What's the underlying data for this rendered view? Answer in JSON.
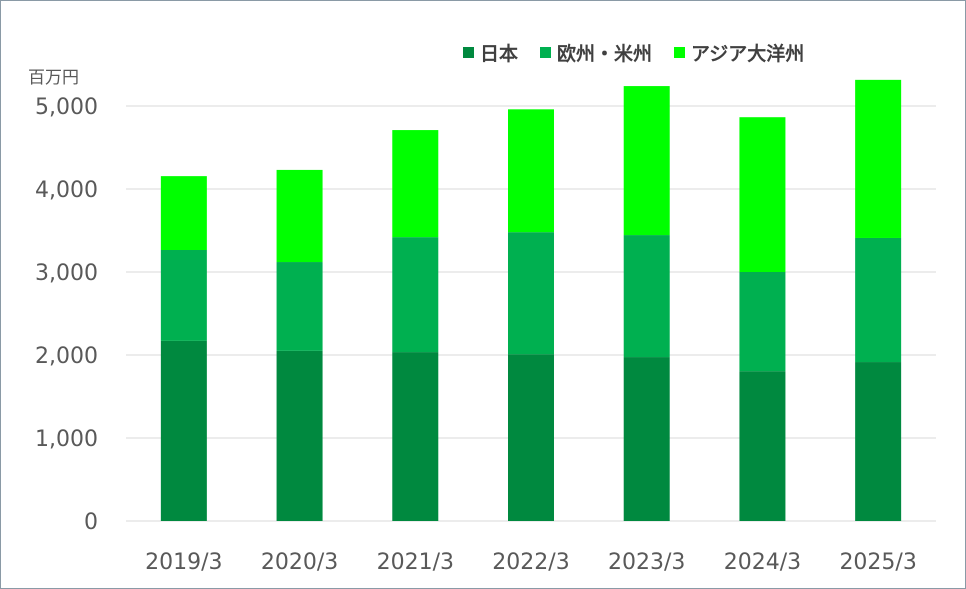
{
  "chart_data": {
    "type": "bar",
    "stacked": true,
    "unit_label": "百万円",
    "categories": [
      "2019/3",
      "2020/3",
      "2021/3",
      "2022/3",
      "2023/3",
      "2024/3",
      "2025/3"
    ],
    "series": [
      {
        "name": "日本",
        "color": "#00893f",
        "values": [
          2170,
          2050,
          2035,
          2010,
          1975,
          1805,
          1915
        ]
      },
      {
        "name": "欧州・米州",
        "color": "#00b050",
        "values": [
          1095,
          1070,
          1385,
          1470,
          1470,
          1195,
          1495
        ]
      },
      {
        "name": "アジア大洋州",
        "color": "#00ff00",
        "values": [
          890,
          1110,
          1290,
          1480,
          1795,
          1865,
          1905
        ]
      }
    ],
    "yticks": [
      "0",
      "1,000",
      "2,000",
      "3,000",
      "4,000",
      "5,000"
    ],
    "ylim": [
      0,
      5000
    ],
    "grid": true,
    "legend_position": "top-right"
  }
}
